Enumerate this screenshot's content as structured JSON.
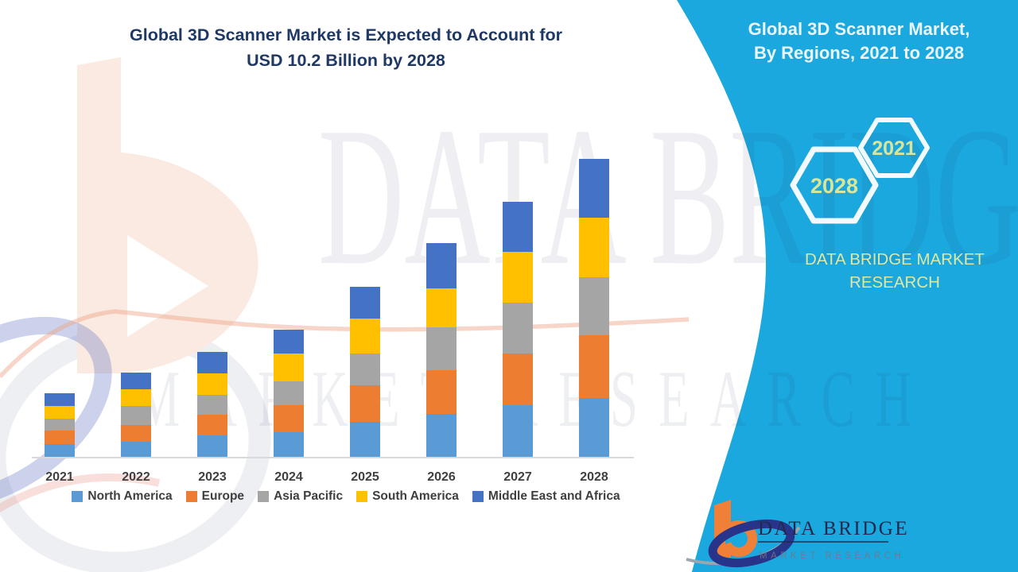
{
  "title": {
    "line1": "Global 3D Scanner Market is Expected to Account for",
    "line2": "USD 10.2 Billion by 2028"
  },
  "right_panel": {
    "title_line1": "Global 3D Scanner Market,",
    "title_line2": "By Regions, 2021 to 2028",
    "brand_line1": "DATA BRIDGE MARKET",
    "brand_line2": "RESEARCH",
    "hexagons": [
      {
        "label": "2021"
      },
      {
        "label": "2028"
      }
    ]
  },
  "logo": {
    "title": "DATA BRIDGE",
    "subtitle": "MARKET RESEARCH"
  },
  "watermark": {
    "line1": "DATA BRIDGE",
    "line2": "MARKET RESEARCH"
  },
  "colors": {
    "cyan_background": "#1BA8DE",
    "title_navy": "#1F3864",
    "axis_label_gray": "#404040",
    "hexagon_text": "#D8E59A",
    "brand_text": "#DDE8A2",
    "axis_line": "#D9D9D9"
  },
  "chart_data": {
    "type": "bar",
    "stacked": true,
    "title": "Global 3D Scanner Market is Expected to Account for USD 10.2 Billion by 2028",
    "categories": [
      "2021",
      "2022",
      "2023",
      "2024",
      "2025",
      "2026",
      "2027",
      "2028"
    ],
    "units": "USD billion (estimated from bar heights, anchored to 2028 total = 10.2)",
    "series": [
      {
        "name": "North America",
        "color": "#5B9BD5",
        "values": [
          0.43,
          0.52,
          0.74,
          0.83,
          1.2,
          1.46,
          1.76,
          2.02
        ]
      },
      {
        "name": "Europe",
        "color": "#ED7D31",
        "values": [
          0.47,
          0.58,
          0.69,
          0.93,
          1.24,
          1.49,
          1.76,
          2.13
        ]
      },
      {
        "name": "Asia Pacific",
        "color": "#A5A5A5",
        "values": [
          0.41,
          0.63,
          0.7,
          0.83,
          1.09,
          1.47,
          1.76,
          1.99
        ]
      },
      {
        "name": "South America",
        "color": "#FFC000",
        "values": [
          0.43,
          0.57,
          0.72,
          0.95,
          1.19,
          1.34,
          1.74,
          2.03
        ]
      },
      {
        "name": "Middle East and Africa",
        "color": "#4472C4",
        "values": [
          0.43,
          0.57,
          0.75,
          0.8,
          1.1,
          1.54,
          1.69,
          2.03
        ]
      }
    ],
    "totals": [
      2.17,
      2.87,
      3.6,
      4.34,
      5.82,
      7.3,
      8.71,
      10.2
    ],
    "xlabel": "",
    "ylabel": "",
    "y_axis_labels": false,
    "grid": false,
    "legend_position": "bottom"
  }
}
